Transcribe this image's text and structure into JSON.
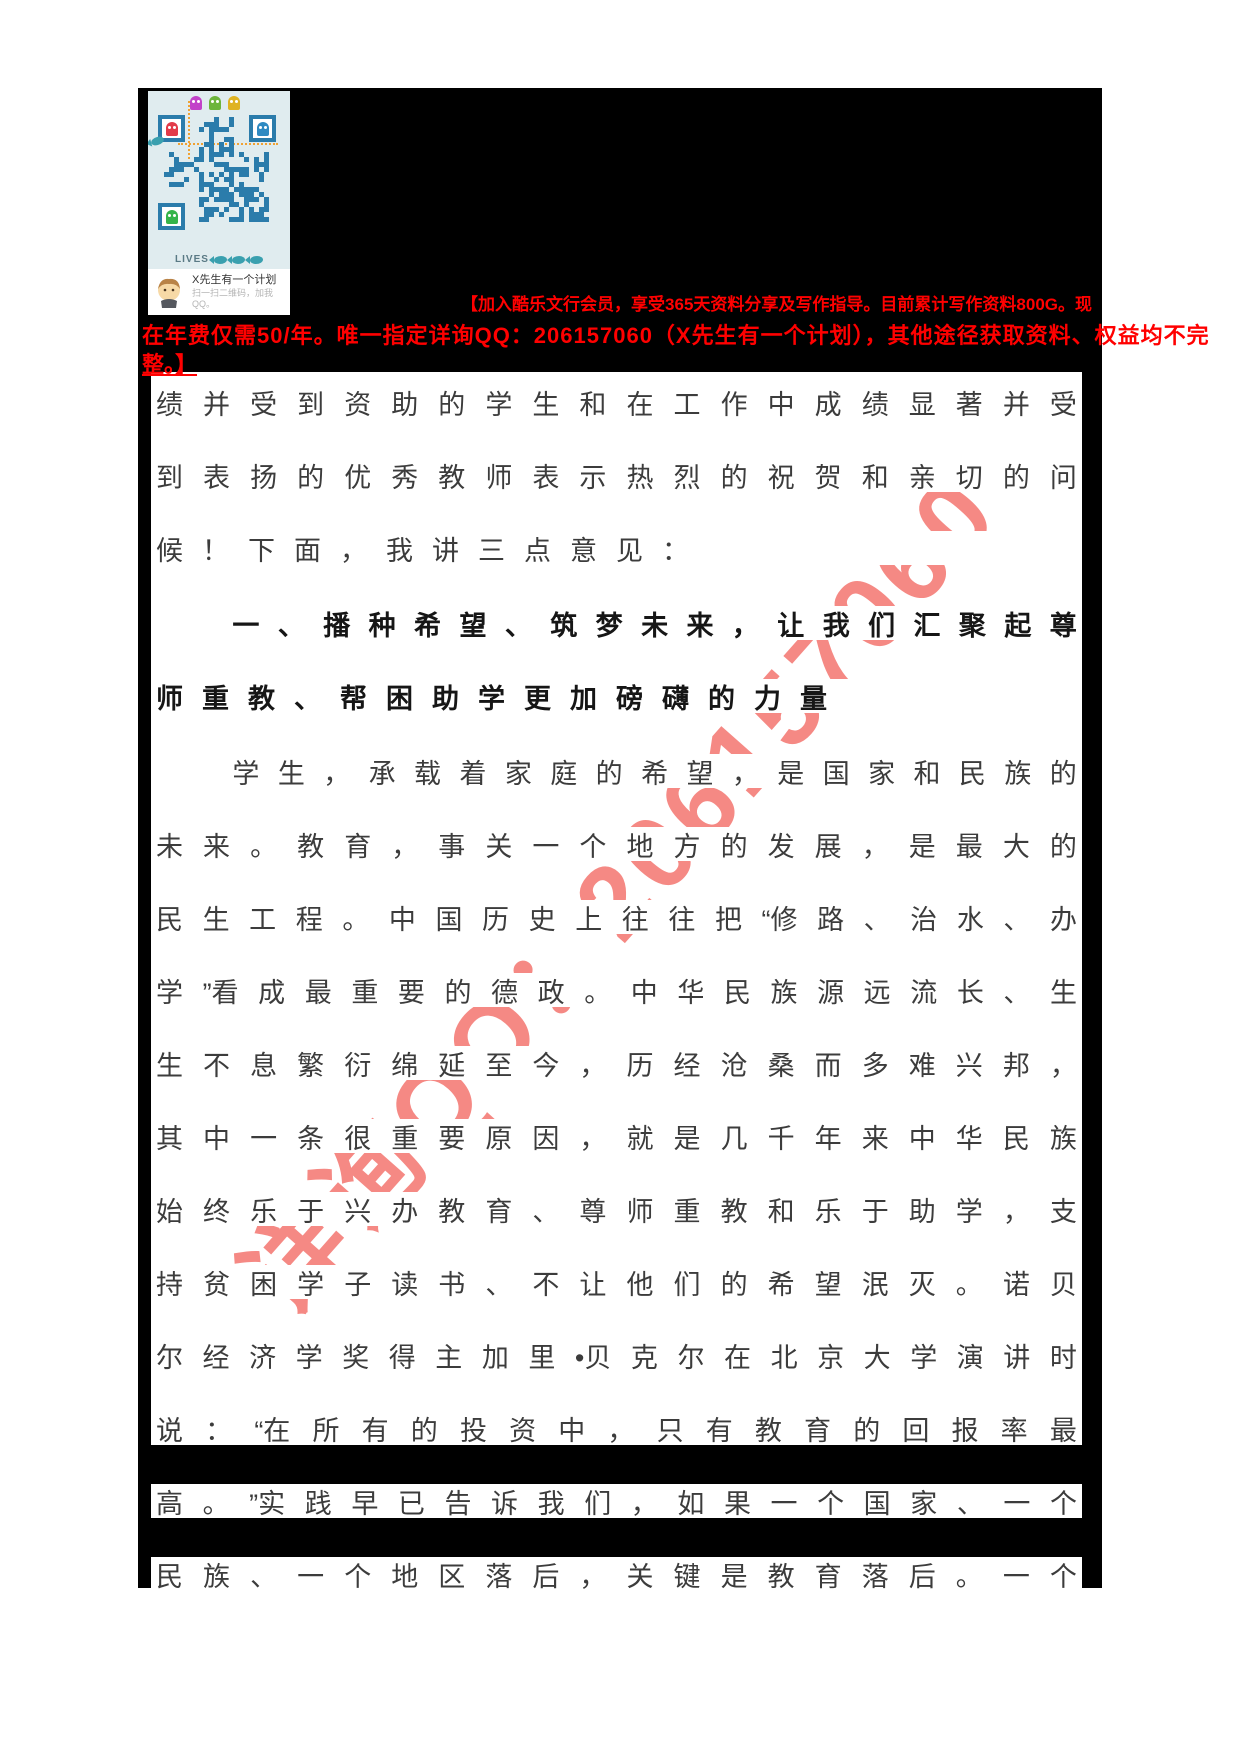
{
  "qr_card": {
    "title": "X先生有一个计划",
    "subtitle": "扫一扫二维码，加我QQ。",
    "qr_caption": "LIVES",
    "colors": {
      "qr_module": "#2b7cab",
      "qr_background": "#e0ecef"
    }
  },
  "ad_banner": {
    "color": "#ff0000",
    "line1": "【加入酷乐文行会员，享受365天资料分享及写作指导。目前累计写作资料800G。现",
    "line2": "在年费仅需50/年。唯一指定详询QQ：206157060（X先生有一个计划），其他途径获取资料、权益均不完",
    "line3": "整。】"
  },
  "watermark": {
    "text": "详询QQ：206157060",
    "color": "#f4756f"
  },
  "document": {
    "lines": [
      {
        "text": "绩并受到资助的学生和在工作中成绩显著并受",
        "style": "justify",
        "indent": false,
        "gap_before": false
      },
      {
        "text": "到表扬的优秀教师表示热烈的祝贺和亲切的问",
        "style": "justify",
        "indent": false,
        "gap_before": false
      },
      {
        "text": "候！下面，我讲三点意见：",
        "style": "left",
        "indent": false,
        "gap_before": false
      },
      {
        "text": "一、播种希望、筑梦未来，让我们汇聚起尊",
        "style": "heading-justify",
        "indent": true,
        "gap_before": true
      },
      {
        "text": "师重教、帮困助学更加磅礴的力量",
        "style": "heading-left",
        "indent": false,
        "gap_before": false
      },
      {
        "text": "学生，承载着家庭的希望，是国家和民族的",
        "style": "justify",
        "indent": true,
        "gap_before": true
      },
      {
        "text": "未来。教育，事关一个地方的发展，是最大的",
        "style": "justify",
        "indent": false,
        "gap_before": false
      },
      {
        "text": "民生工程。中国历史上往往把“修路、治水、办",
        "style": "justify",
        "indent": false,
        "gap_before": false
      },
      {
        "text": "学”看成最重要的德政。中华民族源远流长、生",
        "style": "justify",
        "indent": false,
        "gap_before": false
      },
      {
        "text": "生不息繁衍绵延至今，历经沧桑而多难兴邦，",
        "style": "justify",
        "indent": false,
        "gap_before": false
      },
      {
        "text": "其中一条很重要原因，就是几千年来中华民族",
        "style": "justify",
        "indent": false,
        "gap_before": false
      },
      {
        "text": "始终乐于兴办教育、尊师重教和乐于助学，支",
        "style": "justify",
        "indent": false,
        "gap_before": false
      },
      {
        "text": "持贫困学子读书、不让他们的希望泯灭。诺贝",
        "style": "justify",
        "indent": false,
        "gap_before": false
      },
      {
        "text": "尔经济学奖得主加里•贝克尔在北京大学演讲时",
        "style": "justify",
        "indent": false,
        "gap_before": false
      },
      {
        "text": "说：“在所有的投资中，只有教育的回报率最",
        "style": "justify",
        "indent": false,
        "gap_before": false
      },
      {
        "text": "高。”实践早已告诉我们，如果一个国家、一个",
        "style": "justify",
        "indent": false,
        "gap_before": false
      },
      {
        "text": "民族、一个地区落后，关键是教育落后。一个",
        "style": "justify",
        "indent": false,
        "gap_before": false
      }
    ]
  }
}
